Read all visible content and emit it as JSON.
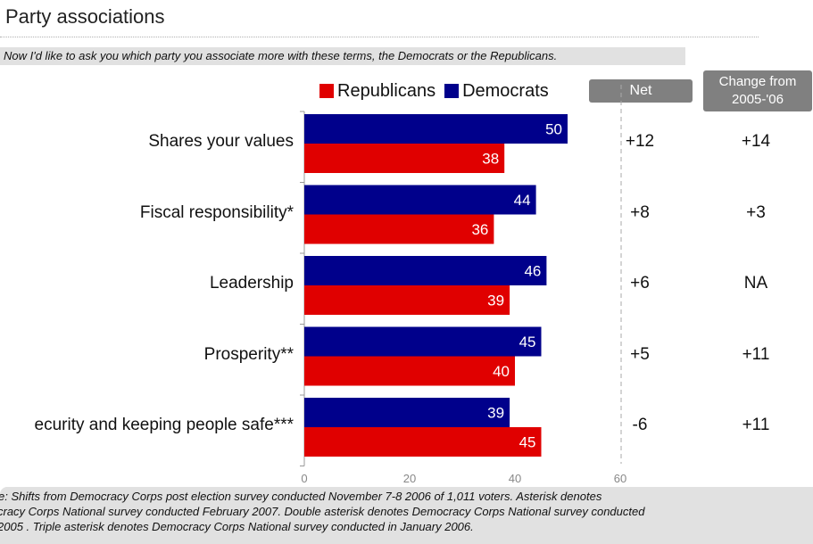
{
  "title": "Party associations",
  "question": "Now I'd like to ask you which party you associate more with these terms, the Democrats or the Republicans.",
  "legend": {
    "republicans": "Republicans",
    "democrats": "Democrats"
  },
  "headers": {
    "net": "Net",
    "change_line1": "Change from",
    "change_line2": "2005-'06"
  },
  "colors": {
    "republicans": "#e00000",
    "democrats": "#00008b"
  },
  "chart_data": {
    "type": "bar",
    "orientation": "horizontal",
    "categories": [
      "Shares your values",
      "Fiscal responsibility*",
      "Leadership",
      "Prosperity**",
      "ecurity and keeping people safe***"
    ],
    "series": [
      {
        "name": "Democrats",
        "values": [
          50,
          44,
          46,
          45,
          39
        ]
      },
      {
        "name": "Republicans",
        "values": [
          38,
          36,
          39,
          40,
          45
        ]
      }
    ],
    "net": [
      "+12",
      "+8",
      "+6",
      "+5",
      "-6"
    ],
    "change": [
      "+14",
      "+3",
      "NA",
      "+11",
      "+11"
    ],
    "x_ticks": [
      "0",
      "20",
      "40",
      "60"
    ],
    "xlim": [
      0,
      60
    ],
    "legend_position": "top"
  },
  "footnote": [
    "e: Shifts from Democracy Corps post election survey conducted November 7-8 2006 of 1,011 voters. Asterisk denotes",
    "cracy Corps National survey conducted February 2007. Double asterisk denotes Democracy Corps National survey conducted",
    " 2005 . Triple asterisk denotes Democracy Corps National survey conducted in January 2006."
  ]
}
